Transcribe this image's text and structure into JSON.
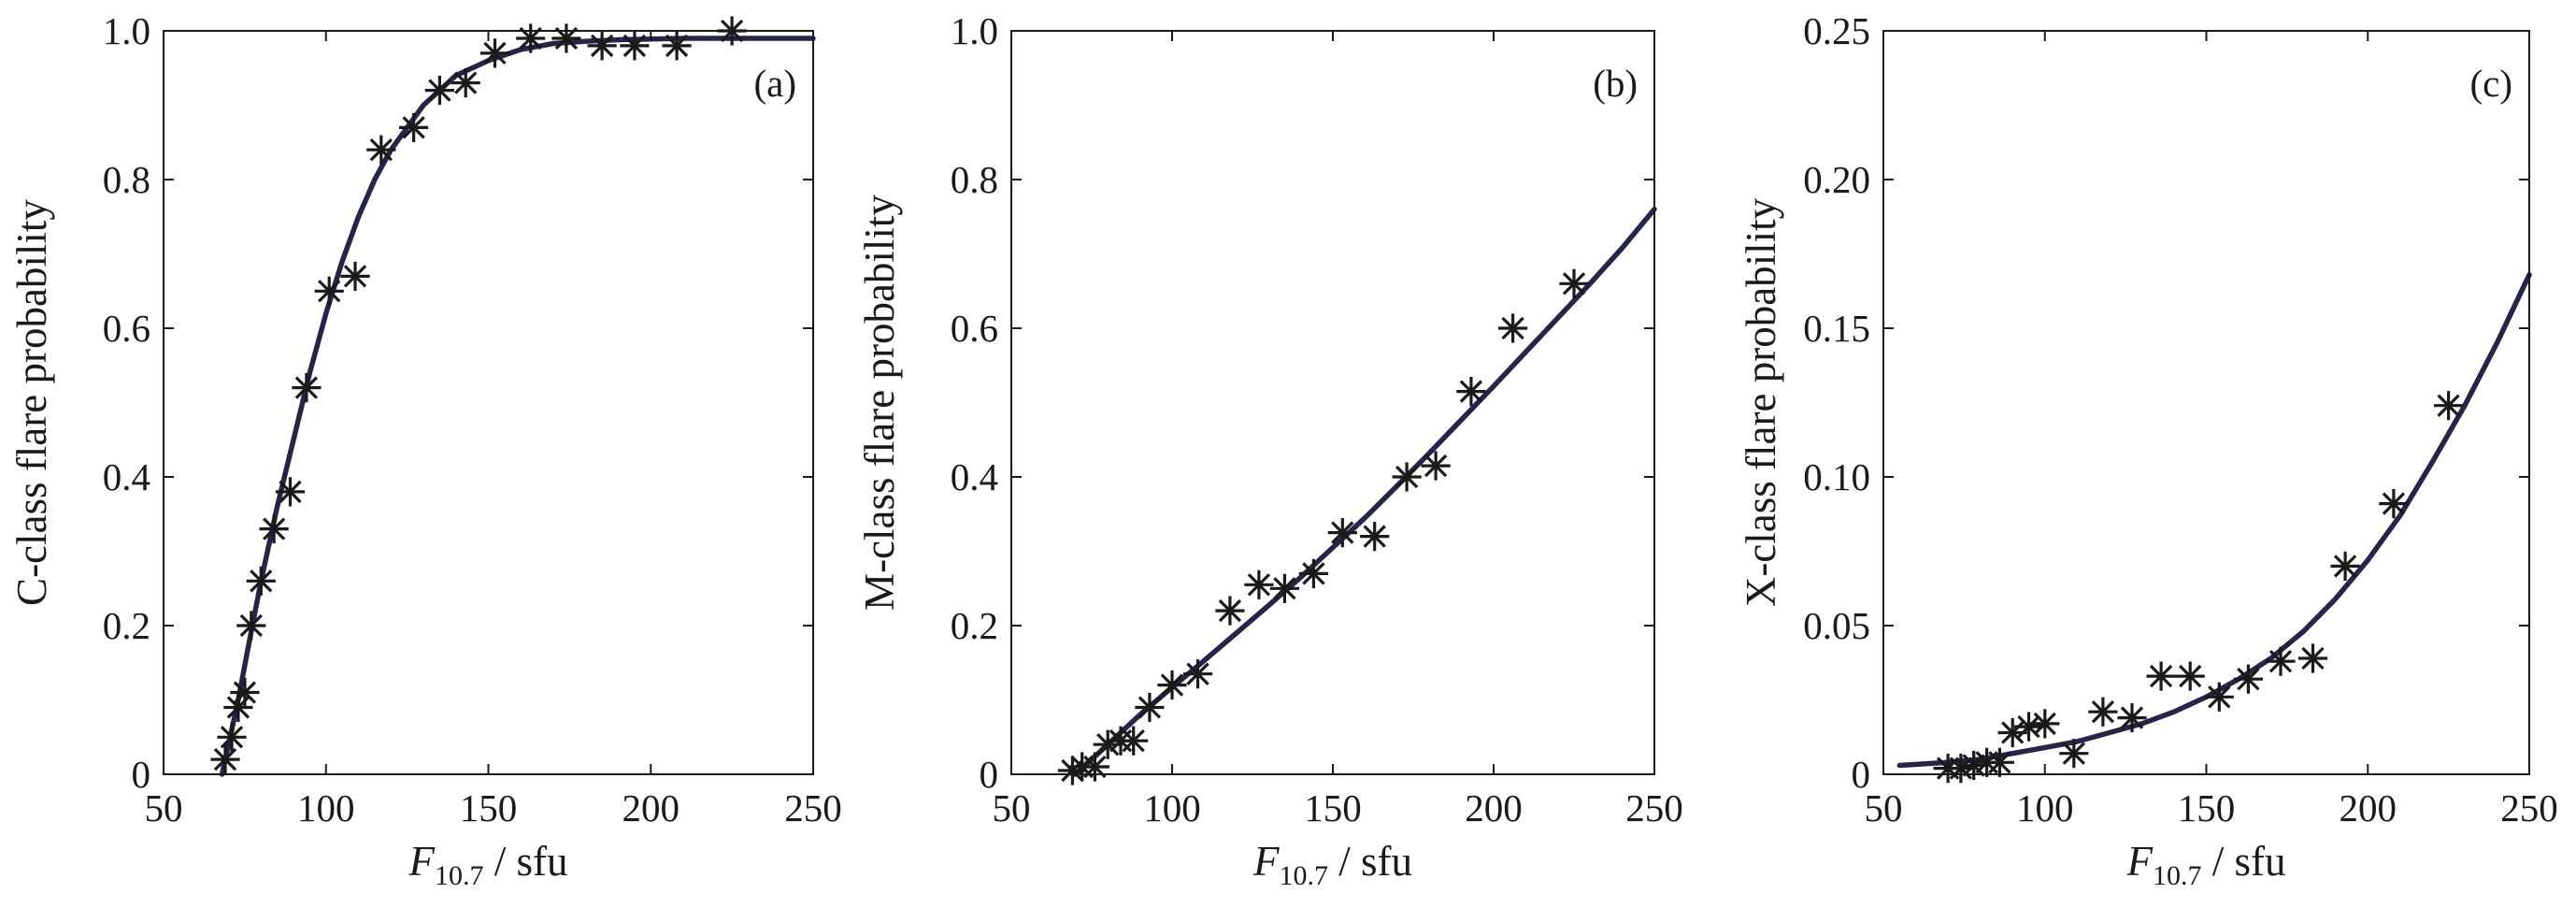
{
  "colors": {
    "curve": "#25254a",
    "marker": "#1a1a1a",
    "axis": "#1a1a1a",
    "background": "#ffffff"
  },
  "chart_data": [
    {
      "type": "scatter",
      "panel_label": "(a)",
      "ylabel": "C-class flare probability",
      "xlabel": {
        "var": "F",
        "sub": "10.7",
        "unit": " / sfu"
      },
      "xlim": [
        50,
        250
      ],
      "ylim": [
        0,
        1.0
      ],
      "xticks": [
        50,
        100,
        150,
        200,
        250
      ],
      "xtick_labels": [
        "50",
        "100",
        "150",
        "200",
        "250"
      ],
      "yticks": [
        0,
        0.2,
        0.4,
        0.6,
        0.8,
        1.0
      ],
      "ytick_labels": [
        "0",
        "0.2",
        "0.4",
        "0.6",
        "0.8",
        "1.0"
      ],
      "grid": false,
      "series": [
        {
          "kind": "points",
          "marker": "asterisk",
          "x": [
            69,
            71,
            73,
            75,
            77,
            80,
            84,
            89,
            94,
            101,
            109,
            117,
            127,
            135,
            143,
            152,
            163,
            174,
            185,
            195,
            208,
            225
          ],
          "y": [
            0.02,
            0.05,
            0.09,
            0.11,
            0.2,
            0.26,
            0.33,
            0.38,
            0.52,
            0.65,
            0.67,
            0.84,
            0.87,
            0.92,
            0.93,
            0.97,
            0.99,
            0.99,
            0.98,
            0.98,
            0.98,
            1.0
          ]
        },
        {
          "kind": "fit",
          "x": [
            68,
            70,
            73,
            76,
            80,
            85,
            90,
            95,
            100,
            105,
            110,
            115,
            120,
            125,
            130,
            135,
            140,
            145,
            150,
            160,
            170,
            180,
            190,
            200,
            210,
            220,
            230,
            240,
            250
          ],
          "y": [
            0.0,
            0.04,
            0.1,
            0.17,
            0.26,
            0.36,
            0.45,
            0.54,
            0.62,
            0.69,
            0.75,
            0.8,
            0.84,
            0.87,
            0.9,
            0.92,
            0.94,
            0.95,
            0.96,
            0.975,
            0.983,
            0.986,
            0.988,
            0.989,
            0.99,
            0.99,
            0.99,
            0.99,
            0.99
          ]
        }
      ]
    },
    {
      "type": "scatter",
      "panel_label": "(b)",
      "ylabel": "M-class flare probability",
      "xlabel": {
        "var": "F",
        "sub": "10.7",
        "unit": " / sfu"
      },
      "xlim": [
        50,
        250
      ],
      "ylim": [
        0,
        1.0
      ],
      "xticks": [
        50,
        100,
        150,
        200,
        250
      ],
      "xtick_labels": [
        "50",
        "100",
        "150",
        "200",
        "250"
      ],
      "yticks": [
        0,
        0.2,
        0.4,
        0.6,
        0.8,
        1.0
      ],
      "ytick_labels": [
        "0",
        "0.2",
        "0.4",
        "0.6",
        "0.8",
        "1.0"
      ],
      "grid": false,
      "series": [
        {
          "kind": "points",
          "marker": "asterisk",
          "x": [
            69,
            72,
            76,
            80,
            84,
            88,
            93,
            100,
            108,
            118,
            127,
            135,
            144,
            153,
            163,
            173,
            182,
            193,
            206,
            225
          ],
          "y": [
            0.005,
            0.01,
            0.01,
            0.04,
            0.045,
            0.045,
            0.09,
            0.12,
            0.135,
            0.22,
            0.255,
            0.25,
            0.27,
            0.325,
            0.32,
            0.4,
            0.415,
            0.515,
            0.6,
            0.66
          ]
        },
        {
          "kind": "fit",
          "x": [
            70,
            80,
            90,
            100,
            110,
            120,
            130,
            140,
            150,
            160,
            170,
            180,
            190,
            200,
            210,
            220,
            230,
            240,
            250
          ],
          "y": [
            0.0,
            0.04,
            0.08,
            0.117,
            0.153,
            0.19,
            0.227,
            0.265,
            0.305,
            0.345,
            0.388,
            0.432,
            0.477,
            0.522,
            0.568,
            0.614,
            0.66,
            0.708,
            0.76
          ]
        }
      ]
    },
    {
      "type": "scatter",
      "panel_label": "(c)",
      "ylabel": "X-class flare probability",
      "xlabel": {
        "var": "F",
        "sub": "10.7",
        "unit": " / sfu"
      },
      "xlim": [
        50,
        250
      ],
      "ylim": [
        0,
        0.25
      ],
      "xticks": [
        50,
        100,
        150,
        200,
        250
      ],
      "xtick_labels": [
        "50",
        "100",
        "150",
        "200",
        "250"
      ],
      "yticks": [
        0,
        0.05,
        0.1,
        0.15,
        0.2,
        0.25
      ],
      "ytick_labels": [
        "0",
        "0.05",
        "0.10",
        "0.15",
        "0.20",
        "0.25"
      ],
      "grid": false,
      "series": [
        {
          "kind": "points",
          "marker": "asterisk",
          "x": [
            70,
            74,
            78,
            82,
            86,
            90,
            95,
            100,
            109,
            118,
            127,
            136,
            145,
            154,
            163,
            173,
            183,
            193,
            208,
            225
          ],
          "y": [
            0.002,
            0.002,
            0.003,
            0.004,
            0.004,
            0.014,
            0.016,
            0.017,
            0.007,
            0.021,
            0.019,
            0.033,
            0.033,
            0.026,
            0.032,
            0.038,
            0.039,
            0.07,
            0.091,
            0.124
          ]
        },
        {
          "kind": "fit",
          "x": [
            55,
            70,
            80,
            90,
            100,
            110,
            120,
            130,
            140,
            150,
            160,
            170,
            180,
            190,
            200,
            210,
            220,
            230,
            240,
            250
          ],
          "y": [
            0.003,
            0.004,
            0.005,
            0.007,
            0.009,
            0.011,
            0.014,
            0.017,
            0.021,
            0.026,
            0.032,
            0.039,
            0.048,
            0.059,
            0.072,
            0.087,
            0.105,
            0.124,
            0.145,
            0.168
          ]
        }
      ]
    }
  ]
}
